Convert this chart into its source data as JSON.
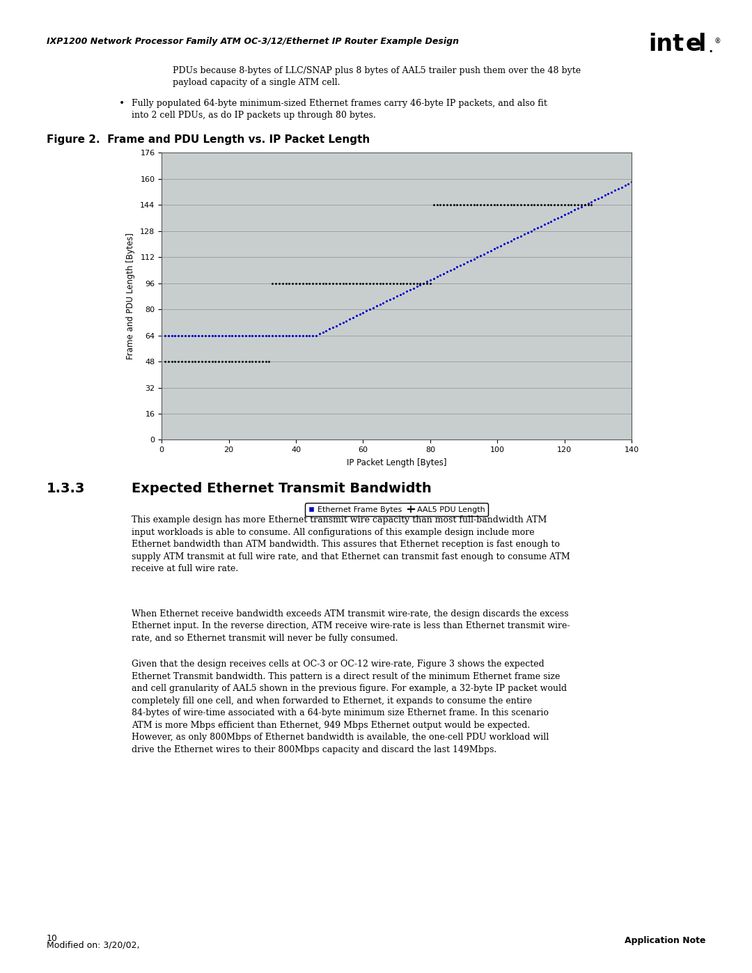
{
  "header": "IXP1200 Network Processor Family ATM OC-3/12/Ethernet IP Router Example Design",
  "figure_caption": "Figure 2.  Frame and PDU Length vs. IP Packet Length",
  "xlabel": "IP Packet Length [Bytes]",
  "ylabel": "Frame and PDU Length [Bytes]",
  "xlim": [
    0,
    140
  ],
  "ylim": [
    0,
    176
  ],
  "xticks": [
    0,
    20,
    40,
    60,
    80,
    100,
    120,
    140
  ],
  "yticks": [
    0,
    16,
    32,
    48,
    64,
    80,
    96,
    112,
    128,
    144,
    160,
    176
  ],
  "bg_color": "#c8cece",
  "legend_entries": [
    "Ethernet Frame Bytes",
    "AAL5 PDU Length"
  ],
  "body_text_1": "PDUs because 8-bytes of LLC/SNAP plus 8 bytes of AAL5 trailer push them over the 48 byte\npayload capacity of a single ATM cell.",
  "bullet_text_1": "Fully populated 64-byte minimum-sized Ethernet frames carry 46-byte IP packets, and also fit\ninto 2 cell PDUs, as do IP packets up through 80 bytes.",
  "section_num": "1.3.3",
  "section_title": "Expected Ethernet Transmit Bandwidth",
  "section_body_1": "This example design has more Ethernet transmit wire capacity than most full-bandwidth ATM\ninput workloads is able to consume. All configurations of this example design include more\nEthernet bandwidth than ATM bandwidth. This assures that Ethernet reception is fast enough to\nsupply ATM transmit at full wire rate, and that Ethernet can transmit fast enough to consume ATM\nreceive at full wire rate.",
  "section_body_2": "When Ethernet receive bandwidth exceeds ATM transmit wire-rate, the design discards the excess\nEthernet input. In the reverse direction, ATM receive wire-rate is less than Ethernet transmit wire-\nrate, and so Ethernet transmit will never be fully consumed.",
  "section_body_3": "Given that the design receives cells at OC-3 or OC-12 wire-rate, Figure 3 shows the expected\nEthernet Transmit bandwidth. This pattern is a direct result of the minimum Ethernet frame size\nand cell granularity of AAL5 shown in the previous figure. For example, a 32-byte IP packet would\ncompletely fill one cell, and when forwarded to Ethernet, it expands to consume the entire\n84-bytes of wire-time associated with a 64-byte minimum size Ethernet frame. In this scenario\nATM is more Mbps efficient than Ethernet, 949 Mbps Ethernet output would be expected.\nHowever, as only 800Mbps of Ethernet bandwidth is available, the one-cell PDU workload will\ndrive the Ethernet wires to their 800Mbps capacity and discard the last 149Mbps.",
  "footer_left_line1": "10",
  "footer_left_line2": "Modified on: 3/20/02,",
  "footer_right": "Application Note"
}
